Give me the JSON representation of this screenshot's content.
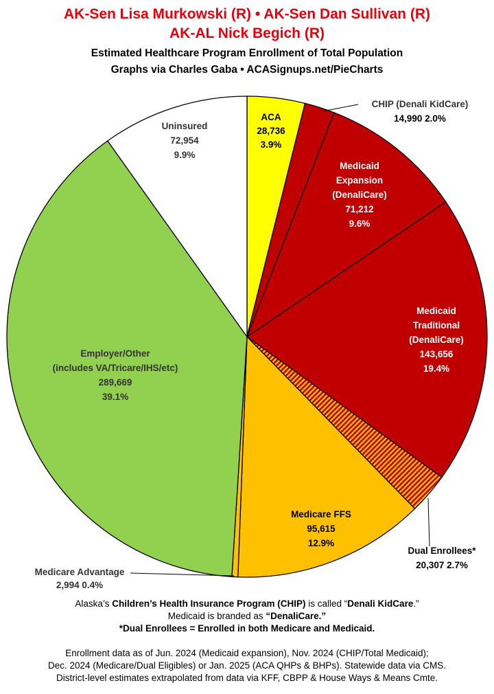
{
  "header": {
    "title_line1": "AK-Sen Lisa Murkowski (R) • AK-Sen Dan Sullivan (R)",
    "title_line2": "AK-AL Nick Begich (R)",
    "subtitle_line1": "Estimated Healthcare Program Enrollment of Total Population",
    "subtitle_line2": "Graphs via Charles Gaba   •   ACASignups.net/PieCharts"
  },
  "chart_data": {
    "type": "pie",
    "title": "Estimated Healthcare Program Enrollment of Total Population",
    "slices": [
      {
        "name": "ACA",
        "value": 28736,
        "percent": "3.9%",
        "value_label": "28,736",
        "color": "#ffff00",
        "label_lines": [
          "ACA"
        ]
      },
      {
        "name": "CHIP (Denali KidCare)",
        "value": 14990,
        "percent": "2.0%",
        "value_label": "14,990",
        "color": "#c00000",
        "label_lines": [
          "CHIP (Denali KidCare)"
        ]
      },
      {
        "name": "Medicaid Expansion (DenaliCare)",
        "value": 71212,
        "percent": "9.6%",
        "value_label": "71,212",
        "color": "#c00000",
        "label_lines": [
          "Medicaid",
          "Expansion",
          "(DenaliCare)"
        ]
      },
      {
        "name": "Medicaid Traditional (DenaliCare)",
        "value": 143656,
        "percent": "19.4%",
        "value_label": "143,656",
        "color": "#c00000",
        "label_lines": [
          "Medicaid",
          "Traditional",
          "(DenaliCare)"
        ]
      },
      {
        "name": "Dual Enrollees*",
        "value": 20307,
        "percent": "2.7%",
        "value_label": "20,307",
        "color": "#c00000",
        "pattern": "hatch",
        "label_lines": [
          "Dual Enrollees*"
        ]
      },
      {
        "name": "Medicare FFS",
        "value": 95615,
        "percent": "12.9%",
        "value_label": "95,615",
        "color": "#ffc000",
        "label_lines": [
          "Medicare FFS"
        ]
      },
      {
        "name": "Medicare Advantage",
        "value": 2994,
        "percent": "0.4%",
        "value_label": "2,994",
        "color": "#ffc000",
        "label_lines": [
          "Medicare Advantage"
        ]
      },
      {
        "name": "Employer/Other (includes VA/Tricare/IHS/etc)",
        "value": 289669,
        "percent": "39.1%",
        "value_label": "289,669",
        "color": "#92d050",
        "label_lines": [
          "Employer/Other",
          "(includes VA/Tricare/IHS/etc)"
        ]
      },
      {
        "name": "Uninsured",
        "value": 72954,
        "percent": "9.9%",
        "value_label": "72,954",
        "color": "#ffffff",
        "label_lines": [
          "Uninsured"
        ]
      }
    ]
  },
  "footer": {
    "note1_prefix": "Alaska’s ",
    "note1_bold": "Children’s Health Insurance Program (CHIP)",
    "note1_mid": " is called “",
    "note1_bold2": "Denali KidCare",
    "note1_suffix": ".”",
    "note2_prefix": "Medicaid is branded as ",
    "note2_bold": "“DenaliCare.”",
    "note3_bold1": "*Dual Enrollees",
    "note3_mid": " = Enrolled in ",
    "note3_bold2": "both",
    "note3_mid2": " Medicare ",
    "note3_bold3": "and Medicaid.",
    "source1": "Enrollment data as of Jun. 2024 (Medicaid expansion), Nov. 2024 (CHIP/Total Medicaid);",
    "source2": "Dec. 2024 (Medicare/Dual Eligibles) or Jan. 2025 (ACA QHPs & BHPs). Statewide data via CMS.",
    "source3": "District-level estimates extrapolated from data via KFF, CBPP & House Ways & Means Cmte."
  }
}
